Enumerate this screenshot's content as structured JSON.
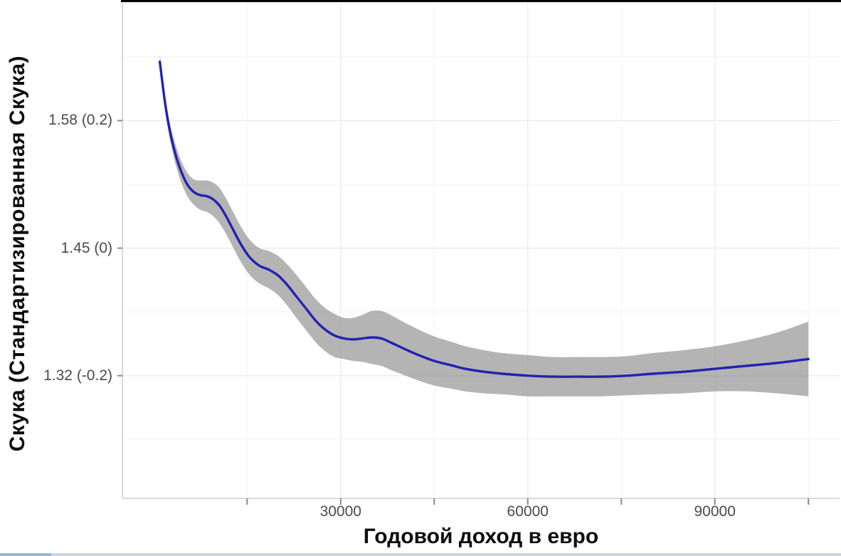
{
  "chart_data": {
    "type": "line",
    "xlabel": "Годовой доход в евро",
    "ylabel": "Скука (Стандартизированная Скука)",
    "xlim": [
      -5000,
      110000
    ],
    "ylim": [
      1.195,
      1.7
    ],
    "grid": true,
    "legend": false,
    "x_ticks": [
      {
        "value": 30000,
        "label": "30000"
      },
      {
        "value": 60000,
        "label": "60000"
      },
      {
        "value": 90000,
        "label": "90000"
      }
    ],
    "x_minor_ticks": [
      15000,
      45000,
      75000,
      105000
    ],
    "y_ticks": [
      {
        "value": 1.58,
        "label": "1.58 (0.2)"
      },
      {
        "value": 1.45,
        "label": "1.45 (0)"
      },
      {
        "value": 1.32,
        "label": "1.32 (-0.2)"
      }
    ],
    "y_minor_gridlines": [
      1.255,
      1.385,
      1.515,
      1.645
    ],
    "series": [
      {
        "name": "smooth-fit-with-confidence-band",
        "line_color": "#2222b2",
        "band_color": "#8c8c8c",
        "band_opacity": 0.65,
        "x": [
          1000,
          1800,
          2600,
          3500,
          4500,
          5500,
          6500,
          7500,
          8500,
          9500,
          10500,
          11500,
          12500,
          14000,
          15500,
          17000,
          18500,
          20000,
          21500,
          23000,
          24500,
          26000,
          27500,
          29000,
          30500,
          32000,
          33500,
          35000,
          36500,
          38000,
          40000,
          42500,
          45000,
          47500,
          50000,
          53000,
          56000,
          60000,
          64000,
          68000,
          72000,
          76000,
          80000,
          85000,
          90000,
          95000,
          100000,
          105000
        ],
        "y": [
          1.64,
          1.6,
          1.57,
          1.546,
          1.527,
          1.514,
          1.507,
          1.504,
          1.503,
          1.5,
          1.494,
          1.484,
          1.472,
          1.454,
          1.44,
          1.432,
          1.428,
          1.422,
          1.412,
          1.4,
          1.388,
          1.376,
          1.367,
          1.361,
          1.358,
          1.357,
          1.358,
          1.359,
          1.358,
          1.354,
          1.348,
          1.341,
          1.335,
          1.331,
          1.327,
          1.324,
          1.322,
          1.32,
          1.319,
          1.319,
          1.319,
          1.32,
          1.322,
          1.324,
          1.327,
          1.33,
          1.333,
          1.337
        ],
        "upper": [
          1.648,
          1.608,
          1.578,
          1.556,
          1.538,
          1.526,
          1.52,
          1.519,
          1.519,
          1.517,
          1.512,
          1.502,
          1.49,
          1.472,
          1.458,
          1.45,
          1.447,
          1.442,
          1.433,
          1.422,
          1.41,
          1.398,
          1.389,
          1.383,
          1.379,
          1.379,
          1.382,
          1.386,
          1.386,
          1.382,
          1.375,
          1.367,
          1.36,
          1.355,
          1.35,
          1.346,
          1.343,
          1.341,
          1.339,
          1.339,
          1.339,
          1.34,
          1.343,
          1.346,
          1.35,
          1.356,
          1.364,
          1.375
        ],
        "lower": [
          1.632,
          1.592,
          1.562,
          1.536,
          1.516,
          1.502,
          1.494,
          1.489,
          1.487,
          1.483,
          1.476,
          1.466,
          1.454,
          1.436,
          1.422,
          1.414,
          1.409,
          1.402,
          1.391,
          1.378,
          1.366,
          1.354,
          1.345,
          1.339,
          1.337,
          1.335,
          1.334,
          1.332,
          1.33,
          1.326,
          1.321,
          1.315,
          1.31,
          1.307,
          1.304,
          1.302,
          1.301,
          1.299,
          1.299,
          1.299,
          1.299,
          1.3,
          1.301,
          1.302,
          1.304,
          1.304,
          1.302,
          1.299
        ]
      }
    ]
  },
  "decorations": {
    "top_border_color": "#000000",
    "bottom_bar_color": "#ccd3dc",
    "bottom_bar_accent_color": "#9db3d8"
  }
}
